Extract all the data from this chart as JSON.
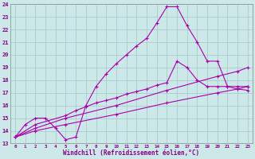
{
  "xlabel": "Windchill (Refroidissement éolien,°C)",
  "bg_color": "#cce8e8",
  "grid_color": "#aacccc",
  "line_color": "#aa00aa",
  "xlim": [
    -0.5,
    23.5
  ],
  "ylim": [
    13,
    24
  ],
  "xticks": [
    0,
    1,
    2,
    3,
    4,
    5,
    6,
    7,
    8,
    9,
    10,
    11,
    12,
    13,
    14,
    15,
    16,
    17,
    18,
    19,
    20,
    21,
    22,
    23
  ],
  "yticks": [
    13,
    14,
    15,
    16,
    17,
    18,
    19,
    20,
    21,
    22,
    23,
    24
  ],
  "line1_x": [
    0,
    1,
    2,
    3,
    4,
    5,
    6,
    7,
    8,
    9,
    10,
    11,
    12,
    13,
    14,
    15,
    16,
    17,
    18,
    19,
    20,
    21,
    22,
    23
  ],
  "line1_y": [
    13.5,
    14.5,
    15.0,
    15.0,
    14.2,
    13.3,
    13.5,
    16.0,
    17.5,
    18.5,
    19.3,
    20.0,
    20.7,
    21.3,
    22.5,
    23.8,
    23.8,
    22.3,
    21.0,
    19.5,
    19.5,
    17.5,
    17.3,
    17.2
  ],
  "line2_x": [
    0,
    2,
    5,
    6,
    7,
    8,
    9,
    10,
    11,
    12,
    13,
    14,
    15,
    16,
    17,
    18,
    19,
    20,
    21,
    22,
    23
  ],
  "line2_y": [
    13.5,
    14.5,
    15.2,
    15.6,
    15.9,
    16.2,
    16.4,
    16.6,
    16.9,
    17.1,
    17.3,
    17.6,
    17.8,
    19.5,
    19.0,
    18.0,
    17.5,
    17.5,
    17.5,
    17.5,
    17.5
  ],
  "line3_x": [
    0,
    2,
    5,
    10,
    15,
    20,
    22,
    23
  ],
  "line3_y": [
    13.5,
    14.0,
    14.5,
    15.3,
    16.2,
    17.0,
    17.3,
    17.5
  ],
  "line4_x": [
    0,
    2,
    5,
    10,
    15,
    20,
    22,
    23
  ],
  "line4_y": [
    13.5,
    14.2,
    15.0,
    16.0,
    17.2,
    18.3,
    18.7,
    19.0
  ]
}
